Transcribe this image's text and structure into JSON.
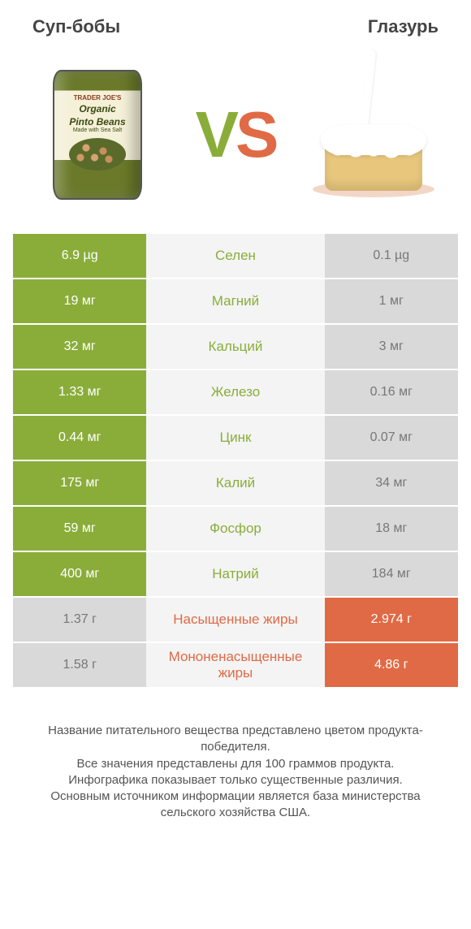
{
  "header": {
    "left_title": "Суп-бобы",
    "right_title": "Глазурь"
  },
  "vs": {
    "v": "V",
    "s": "S"
  },
  "can": {
    "brand": "TRADER JOE'S",
    "name1": "Organic",
    "name2": "Pinto Beans",
    "sub": "Made with Sea Salt"
  },
  "colors": {
    "left_win": "#8aad3a",
    "right_win": "#e06a45",
    "lose": "#d9d9d9",
    "mid_bg": "#f4f4f4",
    "mid_text_left": "#8aad3a",
    "mid_text_right": "#e06a45"
  },
  "rows": [
    {
      "name": "Селен",
      "left": "6.9 µg",
      "right": "0.1 µg",
      "winner": "left"
    },
    {
      "name": "Магний",
      "left": "19 мг",
      "right": "1 мг",
      "winner": "left"
    },
    {
      "name": "Кальций",
      "left": "32 мг",
      "right": "3 мг",
      "winner": "left"
    },
    {
      "name": "Железо",
      "left": "1.33 мг",
      "right": "0.16 мг",
      "winner": "left"
    },
    {
      "name": "Цинк",
      "left": "0.44 мг",
      "right": "0.07 мг",
      "winner": "left"
    },
    {
      "name": "Калий",
      "left": "175 мг",
      "right": "34 мг",
      "winner": "left"
    },
    {
      "name": "Фосфор",
      "left": "59 мг",
      "right": "18 мг",
      "winner": "left"
    },
    {
      "name": "Натрий",
      "left": "400 мг",
      "right": "184 мг",
      "winner": "left"
    },
    {
      "name": "Насыщенные жиры",
      "left": "1.37 г",
      "right": "2.974 г",
      "winner": "right"
    },
    {
      "name": "Мононенасыщенные жиры",
      "left": "1.58 г",
      "right": "4.86 г",
      "winner": "right"
    }
  ],
  "footer": {
    "l1": "Название питательного вещества представлено цветом продукта-победителя.",
    "l2": "Все значения представлены для 100 граммов продукта.",
    "l3": "Инфографика показывает только существенные различия.",
    "l4": "Основным источником информации является база министерства сельского хозяйства США."
  }
}
